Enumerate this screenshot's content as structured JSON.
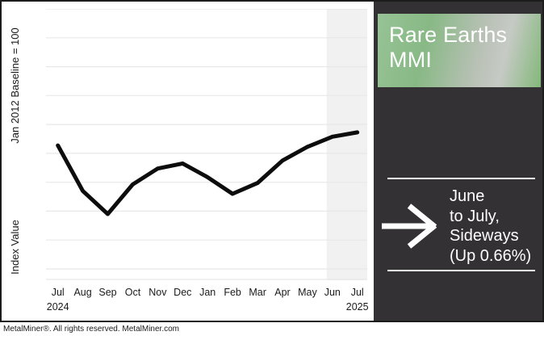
{
  "chart_data": {
    "type": "line",
    "title": "",
    "x_categories": [
      "Jul",
      "Aug",
      "Sep",
      "Oct",
      "Nov",
      "Dec",
      "Jan",
      "Feb",
      "Mar",
      "Apr",
      "May",
      "Jun",
      "Jul"
    ],
    "x_year_labels": [
      {
        "month_index": 0,
        "label": "2024"
      },
      {
        "month_index": 12,
        "label": "2025"
      }
    ],
    "series": [
      {
        "name": "Rare Earths MMI",
        "color": "#0d0d0d",
        "values": [
          97.1,
          90.8,
          87.6,
          91.7,
          93.9,
          94.6,
          92.7,
          90.4,
          91.9,
          95.0,
          96.9,
          98.3,
          98.9
        ]
      }
    ],
    "ylabel_top": "Jan 2012 Baseline = 100",
    "ylabel_bottom": "Index Value",
    "ylim": [
      80,
      116
    ],
    "grid_step": 4,
    "show_y_tick_labels": false,
    "grid": true,
    "legend": false,
    "gridline_color": "#e8e8e8",
    "shaded_region_months": [
      "Jun",
      "Jul"
    ],
    "shaded_region_color": "#f1f1f1"
  },
  "panel": {
    "title_line1": "Rare Earths",
    "title_line2": "MMI",
    "trend_icon": "arrow-right",
    "trend_lines": [
      "June",
      "to July,",
      "Sideways",
      "(Up 0.66%)"
    ],
    "colors": {
      "panel_bg": "#333134",
      "header_green": "#8abc84",
      "header_silver": "#c6cac5",
      "text": "#ffffff"
    }
  },
  "footer": {
    "text": "MetalMiner®. All rights reserved. MetalMiner.com"
  }
}
